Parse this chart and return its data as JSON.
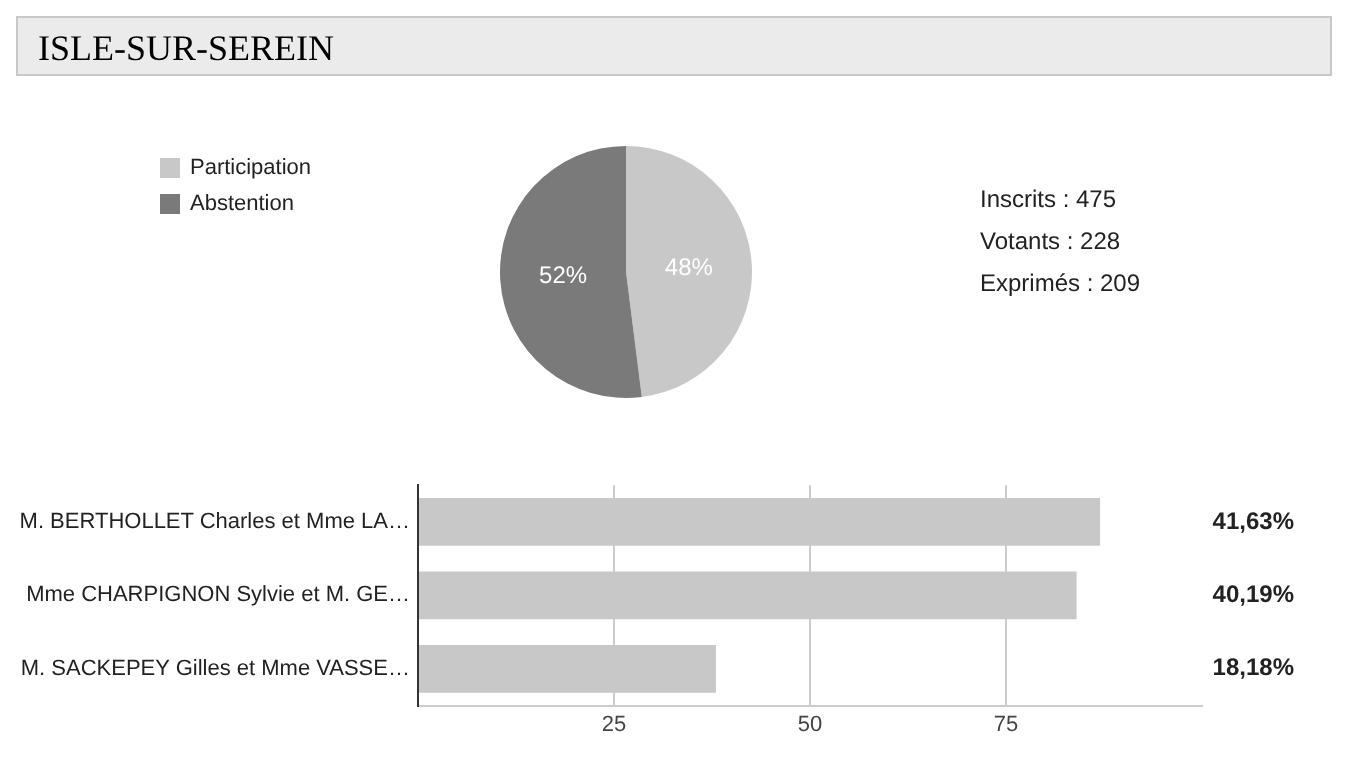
{
  "chart_data": [
    {
      "type": "pie",
      "title": "ISLE-SUR-SEREIN",
      "categories": [
        "Participation",
        "Abstention"
      ],
      "values": [
        48,
        52
      ],
      "colors": [
        "#c8c8c8",
        "#7a7a7a"
      ],
      "value_labels": [
        "48%",
        "52%"
      ],
      "legend": "top left",
      "annotations": [
        "Inscrits : 475",
        "Votants : 228",
        "Exprimés : 209"
      ]
    },
    {
      "type": "bar",
      "orientation": "horizontal",
      "categories": [
        "M. BERTHOLLET Charles et Mme LA…",
        "Mme CHARPIGNON Sylvie et M. GE…",
        "M. SACKEPEY Gilles et Mme VASSE…"
      ],
      "values": [
        87,
        84,
        38
      ],
      "color": "#c8c8c8",
      "annotations": [
        "41,63%",
        "40,19%",
        "18,18%"
      ],
      "xlim": [
        0,
        100
      ],
      "xticks": [
        {
          "value": 0,
          "label": null
        },
        25,
        50,
        75
      ],
      "grid": "x",
      "legend": false
    }
  ]
}
